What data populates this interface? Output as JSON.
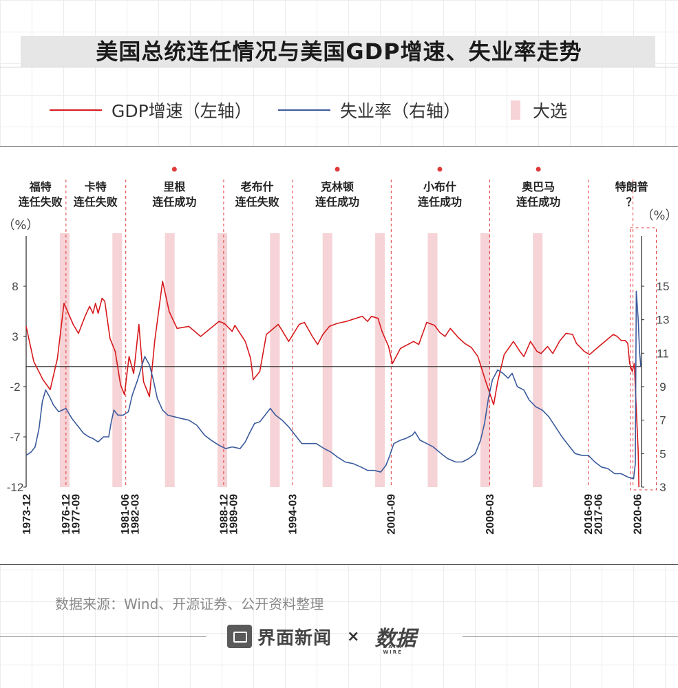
{
  "title": "美国总统连任情况与美国GDP增速、失业率走势",
  "legend": {
    "gdp": "GDP增速（左轴）",
    "unemp": "失业率（右轴）",
    "election": "大选"
  },
  "source": "数据来源：Wind、开源证券、公开资料整理",
  "brand": {
    "name": "界面新闻",
    "times": "×",
    "wire": "数据",
    "wire_sub": "DATA WIRE"
  },
  "colors": {
    "gdp": "#d7191c",
    "unemp": "#3a5a9c",
    "election": "#f6d3d6",
    "divider": "#e03b3b",
    "zero": "#222222"
  },
  "chart_data": {
    "type": "line",
    "left_unit": "（%）",
    "right_unit": "（%）",
    "left_ticks": [
      8,
      3,
      -2,
      -7,
      -12
    ],
    "right_ticks": [
      15,
      13,
      11,
      9,
      7,
      5,
      3
    ],
    "left_ylim": [
      -12,
      13
    ],
    "right_ylim": [
      3,
      18
    ],
    "x_range": [
      1973.92,
      2020.75
    ],
    "x_ticks": [
      "1973-12",
      "1976-12",
      "1977-09",
      "1981-06",
      "1982-03",
      "1988-12",
      "1989-09",
      "1994-03",
      "2001-09",
      "2009-03",
      "2016-09",
      "2017-06",
      "2020-06"
    ],
    "dividers": [
      1976.95,
      1981.5,
      1988.95,
      1994.2,
      2001.7,
      2009.2,
      2016.7,
      2020.1
    ],
    "elections": [
      1976.85,
      1980.85,
      1984.85,
      1988.85,
      1992.85,
      1996.85,
      2000.85,
      2004.85,
      2008.85,
      2012.85
    ],
    "presidents": [
      {
        "name": "福特",
        "result": "连任失败",
        "dot": false,
        "x": 1975.0
      },
      {
        "name": "卡特",
        "result": "连任失败",
        "dot": false,
        "x": 1979.2
      },
      {
        "name": "里根",
        "result": "连任成功",
        "dot": true,
        "x": 1985.2
      },
      {
        "name": "老布什",
        "result": "连任失败",
        "dot": false,
        "x": 1991.5
      },
      {
        "name": "克林顿",
        "result": "连任成功",
        "dot": true,
        "x": 1997.6
      },
      {
        "name": "小布什",
        "result": "连任成功",
        "dot": true,
        "x": 2005.4
      },
      {
        "name": "奥巴马",
        "result": "连任成功",
        "dot": true,
        "x": 2012.9
      },
      {
        "name": "特朗普",
        "result": "？",
        "dot": false,
        "x": 2020.0
      }
    ],
    "series": [
      {
        "name": "GDP增速",
        "axis": "left",
        "points": [
          [
            1973.92,
            4.0
          ],
          [
            1974.5,
            0.5
          ],
          [
            1975.2,
            -1.3
          ],
          [
            1975.75,
            -2.3
          ],
          [
            1976.3,
            0.8
          ],
          [
            1976.8,
            6.3
          ],
          [
            1977.5,
            4.2
          ],
          [
            1977.9,
            3.3
          ],
          [
            1978.4,
            5.0
          ],
          [
            1978.75,
            6.0
          ],
          [
            1979.0,
            5.3
          ],
          [
            1979.2,
            6.3
          ],
          [
            1979.4,
            5.3
          ],
          [
            1979.7,
            6.8
          ],
          [
            1979.9,
            6.5
          ],
          [
            1980.3,
            2.8
          ],
          [
            1980.7,
            1.5
          ],
          [
            1981.1,
            -1.8
          ],
          [
            1981.4,
            -2.8
          ],
          [
            1981.75,
            1.0
          ],
          [
            1982.1,
            -0.7
          ],
          [
            1982.5,
            4.2
          ],
          [
            1982.85,
            -1.5
          ],
          [
            1983.3,
            -3.0
          ],
          [
            1983.7,
            2.5
          ],
          [
            1984.3,
            8.5
          ],
          [
            1984.8,
            5.5
          ],
          [
            1985.4,
            3.8
          ],
          [
            1986.3,
            4.0
          ],
          [
            1987.2,
            3.0
          ],
          [
            1988.6,
            4.5
          ],
          [
            1989.0,
            4.3
          ],
          [
            1989.6,
            3.5
          ],
          [
            1989.8,
            4.1
          ],
          [
            1990.6,
            2.5
          ],
          [
            1991.0,
            0.8
          ],
          [
            1991.2,
            -1.3
          ],
          [
            1991.7,
            -0.5
          ],
          [
            1992.2,
            3.2
          ],
          [
            1993.1,
            4.2
          ],
          [
            1993.3,
            3.8
          ],
          [
            1993.9,
            2.5
          ],
          [
            1994.7,
            4.2
          ],
          [
            1995.1,
            4.4
          ],
          [
            1995.7,
            3.0
          ],
          [
            1996.1,
            2.2
          ],
          [
            1996.5,
            3.2
          ],
          [
            1997.0,
            4.0
          ],
          [
            1997.6,
            4.3
          ],
          [
            1998.3,
            4.5
          ],
          [
            1999.5,
            5.0
          ],
          [
            1999.9,
            4.5
          ],
          [
            2000.2,
            5.0
          ],
          [
            2000.7,
            4.8
          ],
          [
            2001.0,
            3.5
          ],
          [
            2001.5,
            2.0
          ],
          [
            2001.8,
            0.3
          ],
          [
            2002.4,
            1.8
          ],
          [
            2003.4,
            2.5
          ],
          [
            2003.8,
            2.2
          ],
          [
            2004.4,
            4.4
          ],
          [
            2005.0,
            4.1
          ],
          [
            2005.4,
            3.4
          ],
          [
            2005.8,
            3.0
          ],
          [
            2006.2,
            3.8
          ],
          [
            2006.8,
            2.9
          ],
          [
            2007.3,
            2.3
          ],
          [
            2007.8,
            1.9
          ],
          [
            2008.3,
            1.0
          ],
          [
            2008.9,
            -1.5
          ],
          [
            2009.5,
            -3.8
          ],
          [
            2009.8,
            -1.5
          ],
          [
            2010.3,
            1.2
          ],
          [
            2011.0,
            2.5
          ],
          [
            2011.5,
            1.5
          ],
          [
            2011.8,
            1.0
          ],
          [
            2012.3,
            2.5
          ],
          [
            2012.8,
            1.5
          ],
          [
            2013.1,
            1.3
          ],
          [
            2013.6,
            2.0
          ],
          [
            2014.0,
            1.3
          ],
          [
            2014.5,
            2.5
          ],
          [
            2015.0,
            3.3
          ],
          [
            2015.5,
            3.2
          ],
          [
            2015.8,
            2.3
          ],
          [
            2016.4,
            1.5
          ],
          [
            2016.8,
            1.2
          ],
          [
            2017.5,
            2.0
          ],
          [
            2018.6,
            3.2
          ],
          [
            2018.9,
            3.0
          ],
          [
            2019.2,
            2.6
          ],
          [
            2019.5,
            2.6
          ],
          [
            2019.7,
            2.3
          ],
          [
            2019.85,
            0.3
          ],
          [
            2020.05,
            -0.5
          ],
          [
            2020.2,
            0.3
          ],
          [
            2020.5,
            -8.5
          ],
          [
            2020.55,
            -12.0
          ]
        ]
      },
      {
        "name": "失业率",
        "axis": "right",
        "points": [
          [
            1973.92,
            4.9
          ],
          [
            1974.3,
            5.1
          ],
          [
            1974.6,
            5.4
          ],
          [
            1974.9,
            6.5
          ],
          [
            1975.15,
            8.1
          ],
          [
            1975.4,
            8.8
          ],
          [
            1975.7,
            8.4
          ],
          [
            1976.0,
            7.9
          ],
          [
            1976.4,
            7.5
          ],
          [
            1976.95,
            7.7
          ],
          [
            1977.4,
            7.1
          ],
          [
            1977.9,
            6.6
          ],
          [
            1978.3,
            6.2
          ],
          [
            1978.7,
            6.0
          ],
          [
            1979.0,
            5.9
          ],
          [
            1979.4,
            5.7
          ],
          [
            1979.8,
            6.0
          ],
          [
            1980.2,
            6.0
          ],
          [
            1980.4,
            6.9
          ],
          [
            1980.6,
            7.6
          ],
          [
            1980.9,
            7.3
          ],
          [
            1981.3,
            7.3
          ],
          [
            1981.7,
            7.5
          ],
          [
            1982.0,
            8.5
          ],
          [
            1982.4,
            9.4
          ],
          [
            1982.7,
            10.2
          ],
          [
            1982.95,
            10.8
          ],
          [
            1983.3,
            10.3
          ],
          [
            1983.6,
            9.4
          ],
          [
            1983.9,
            8.3
          ],
          [
            1984.3,
            7.6
          ],
          [
            1984.7,
            7.3
          ],
          [
            1985.2,
            7.2
          ],
          [
            1985.7,
            7.1
          ],
          [
            1986.3,
            7.0
          ],
          [
            1986.9,
            6.7
          ],
          [
            1987.5,
            6.1
          ],
          [
            1988.0,
            5.8
          ],
          [
            1988.6,
            5.5
          ],
          [
            1989.1,
            5.3
          ],
          [
            1989.6,
            5.4
          ],
          [
            1990.2,
            5.3
          ],
          [
            1990.6,
            5.7
          ],
          [
            1990.9,
            6.2
          ],
          [
            1991.3,
            6.8
          ],
          [
            1991.7,
            6.9
          ],
          [
            1992.1,
            7.3
          ],
          [
            1992.5,
            7.7
          ],
          [
            1992.9,
            7.3
          ],
          [
            1993.4,
            7.0
          ],
          [
            1993.9,
            6.6
          ],
          [
            1994.4,
            6.1
          ],
          [
            1994.9,
            5.6
          ],
          [
            1995.5,
            5.6
          ],
          [
            1996.0,
            5.6
          ],
          [
            1996.6,
            5.3
          ],
          [
            1997.1,
            5.1
          ],
          [
            1997.6,
            4.8
          ],
          [
            1998.2,
            4.5
          ],
          [
            1998.8,
            4.4
          ],
          [
            1999.4,
            4.2
          ],
          [
            1999.9,
            4.0
          ],
          [
            2000.4,
            4.0
          ],
          [
            2000.9,
            3.9
          ],
          [
            2001.3,
            4.3
          ],
          [
            2001.6,
            4.9
          ],
          [
            2001.9,
            5.6
          ],
          [
            2002.4,
            5.8
          ],
          [
            2002.8,
            5.9
          ],
          [
            2003.3,
            6.1
          ],
          [
            2003.5,
            6.3
          ],
          [
            2003.9,
            5.8
          ],
          [
            2004.4,
            5.6
          ],
          [
            2004.9,
            5.4
          ],
          [
            2005.5,
            5.0
          ],
          [
            2006.0,
            4.7
          ],
          [
            2006.6,
            4.5
          ],
          [
            2007.1,
            4.5
          ],
          [
            2007.6,
            4.7
          ],
          [
            2008.1,
            5.0
          ],
          [
            2008.5,
            5.8
          ],
          [
            2008.8,
            6.8
          ],
          [
            2009.1,
            8.3
          ],
          [
            2009.4,
            9.4
          ],
          [
            2009.8,
            10.0
          ],
          [
            2010.2,
            9.8
          ],
          [
            2010.6,
            9.5
          ],
          [
            2010.9,
            9.8
          ],
          [
            2011.3,
            9.0
          ],
          [
            2011.8,
            8.8
          ],
          [
            2012.2,
            8.2
          ],
          [
            2012.7,
            7.8
          ],
          [
            2013.2,
            7.6
          ],
          [
            2013.7,
            7.2
          ],
          [
            2014.2,
            6.6
          ],
          [
            2014.7,
            6.0
          ],
          [
            2015.2,
            5.5
          ],
          [
            2015.7,
            5.0
          ],
          [
            2016.2,
            4.9
          ],
          [
            2016.7,
            4.9
          ],
          [
            2017.2,
            4.5
          ],
          [
            2017.7,
            4.2
          ],
          [
            2018.2,
            4.1
          ],
          [
            2018.7,
            3.8
          ],
          [
            2019.2,
            3.8
          ],
          [
            2019.7,
            3.6
          ],
          [
            2020.15,
            3.5
          ],
          [
            2020.28,
            4.4
          ],
          [
            2020.35,
            14.7
          ],
          [
            2020.5,
            13.0
          ],
          [
            2020.6,
            11.1
          ],
          [
            2020.7,
            10.2
          ]
        ]
      }
    ]
  }
}
